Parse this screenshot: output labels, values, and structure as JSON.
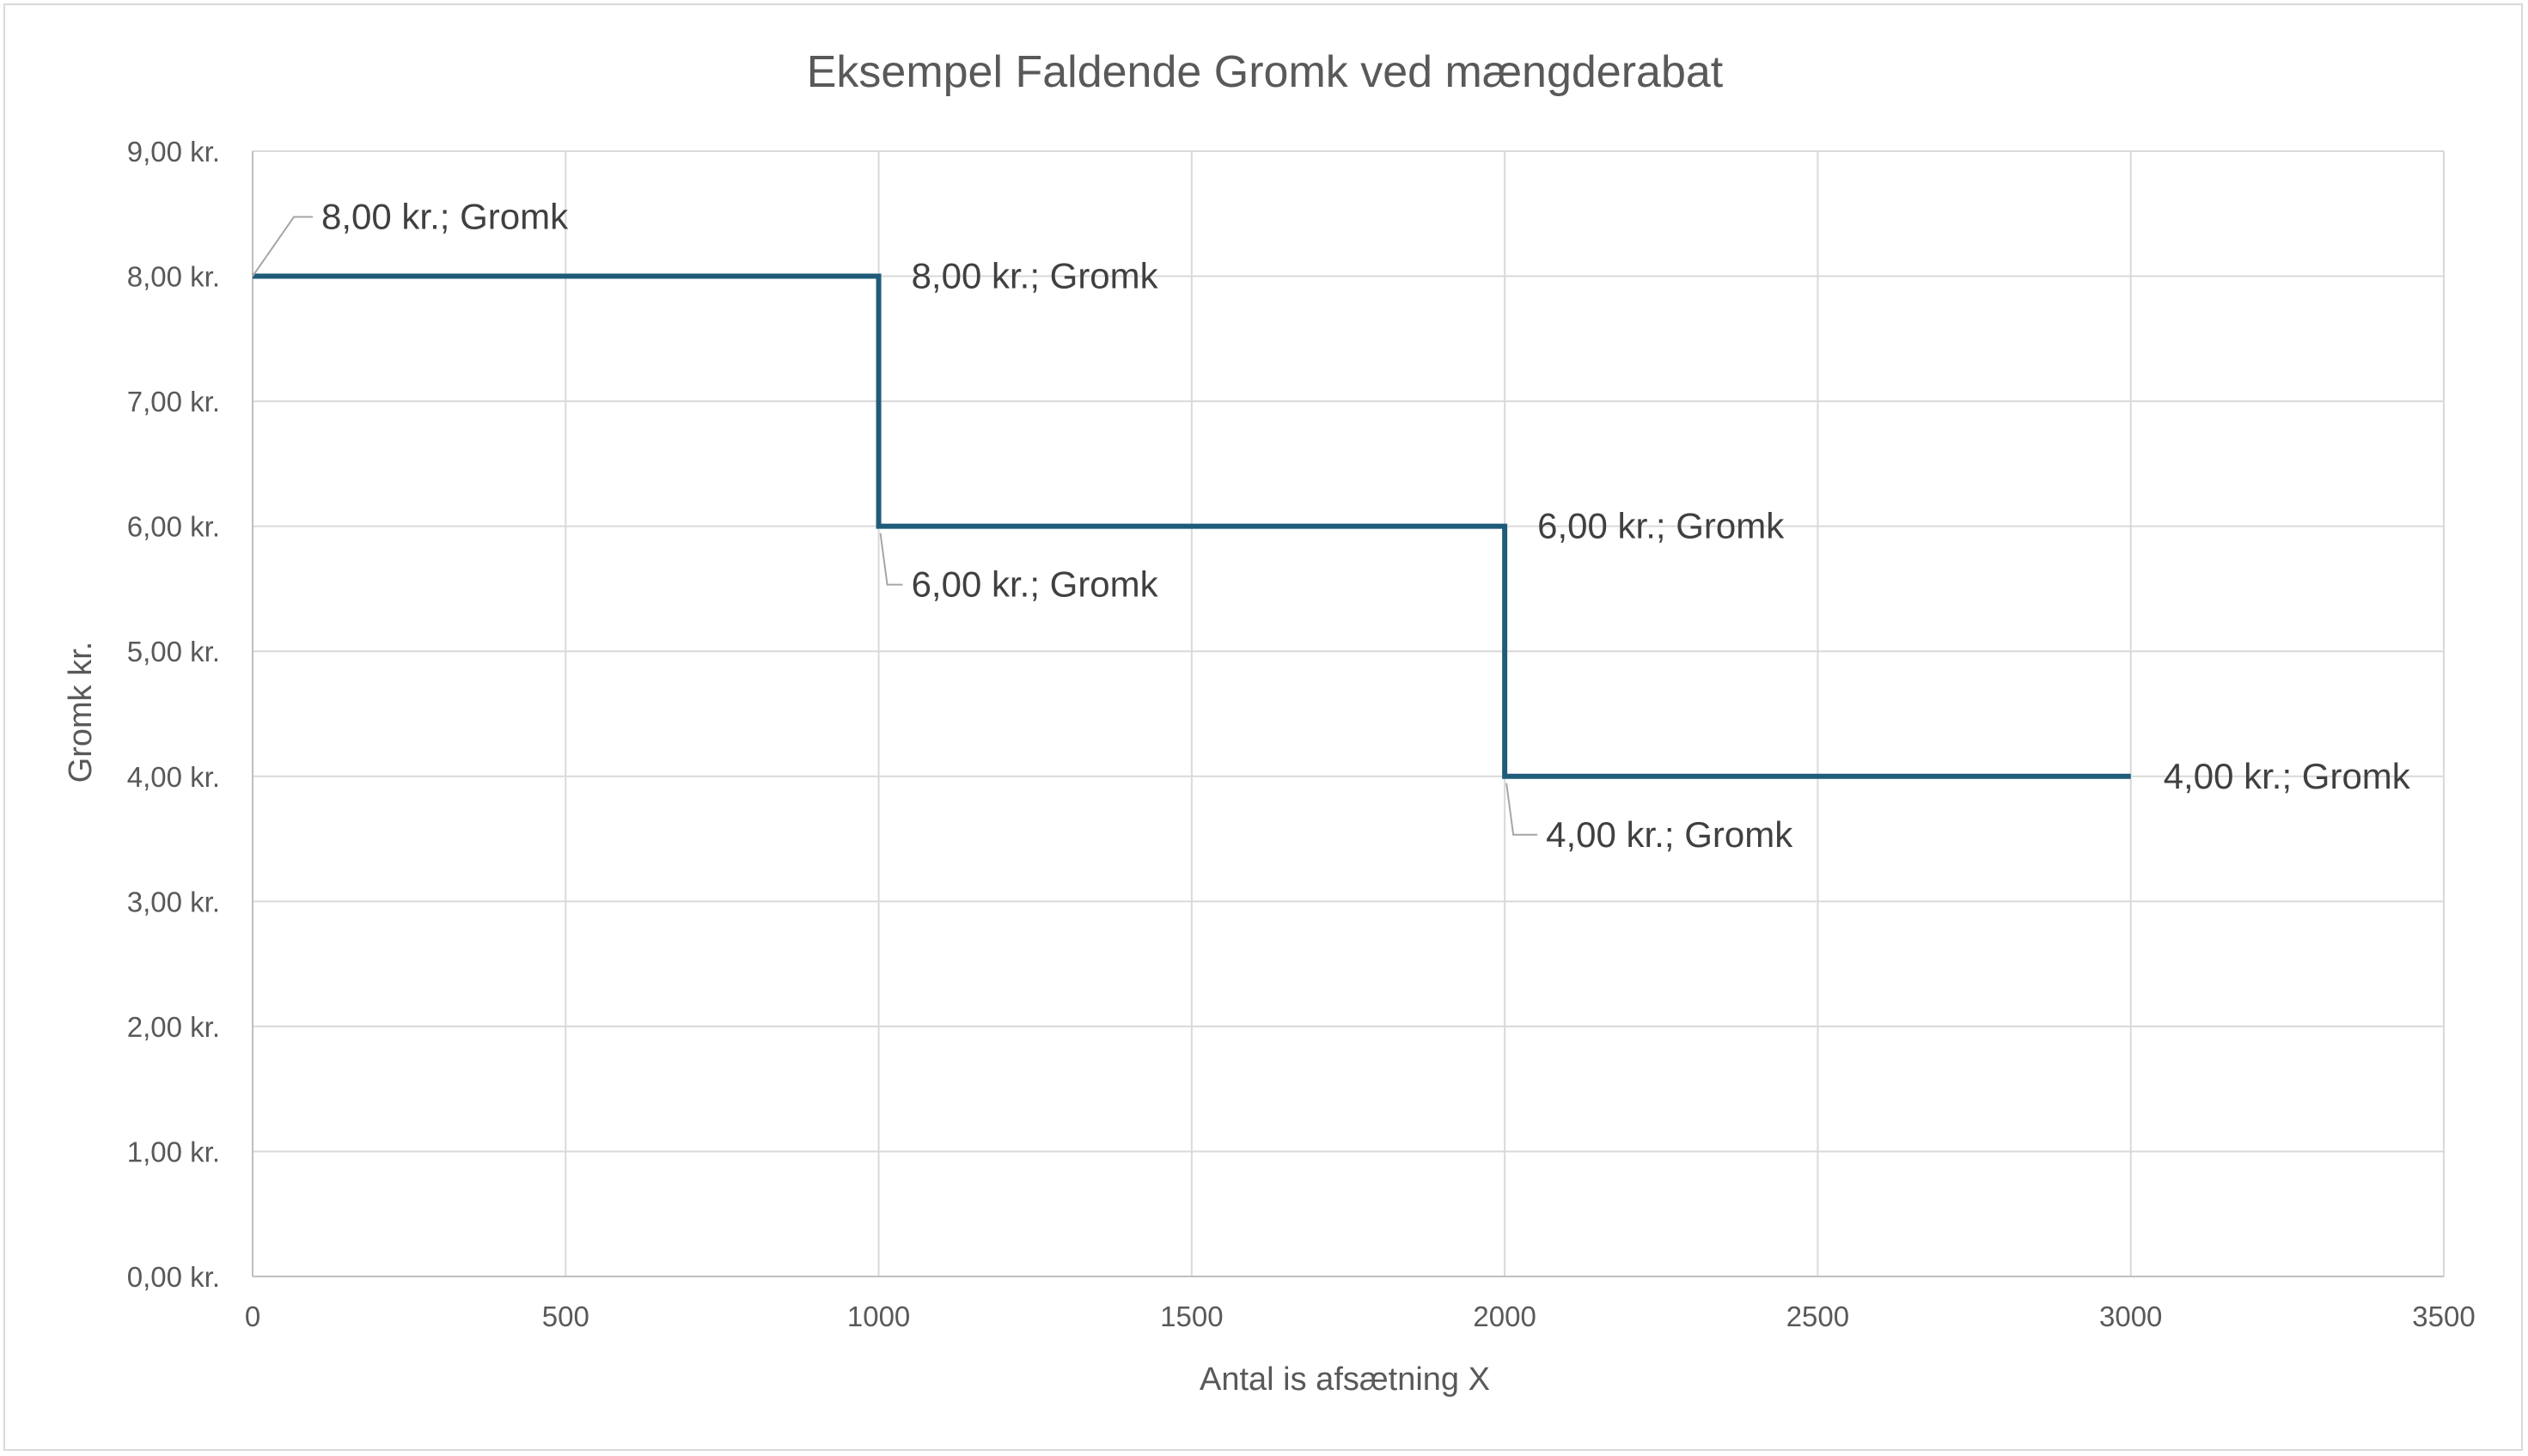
{
  "chart_data": {
    "type": "line",
    "title": "Eksempel Faldende Gromk ved mængderabat",
    "xlabel": "Antal is afsætning X",
    "ylabel": "Gromk kr.",
    "xlim": [
      0,
      3500
    ],
    "ylim": [
      0,
      9
    ],
    "x_ticks": [
      0,
      500,
      1000,
      1500,
      2000,
      2500,
      3000,
      3500
    ],
    "x_tick_labels": [
      "0",
      "500",
      "1000",
      "1500",
      "2000",
      "2500",
      "3000",
      "3500"
    ],
    "y_ticks": [
      0,
      1,
      2,
      3,
      4,
      5,
      6,
      7,
      8,
      9
    ],
    "y_tick_labels": [
      "0,00 kr.",
      "1,00 kr.",
      "2,00 kr.",
      "3,00 kr.",
      "4,00 kr.",
      "5,00 kr.",
      "6,00 kr.",
      "7,00 kr.",
      "8,00 kr.",
      "9,00 kr."
    ],
    "grid": true,
    "legend": "none",
    "series": [
      {
        "color": "#1f5c7a",
        "x": [
          0,
          1000,
          1000,
          2000,
          2000,
          3000
        ],
        "y": [
          8,
          8,
          6,
          6,
          4,
          4
        ],
        "data_labels": [
          "8,00 kr.; Gromk",
          "8,00 kr.; Gromk",
          "6,00 kr.; Gromk",
          "6,00 kr.; Gromk",
          "4,00 kr.; Gromk",
          "4,00 kr.; Gromk"
        ]
      }
    ]
  }
}
